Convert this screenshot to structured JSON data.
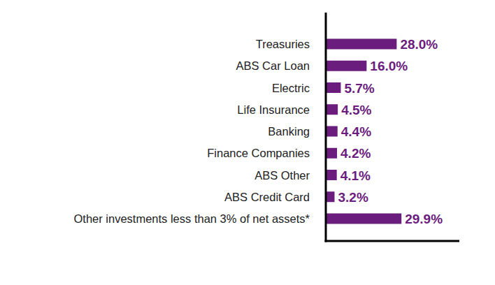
{
  "chart_data": {
    "type": "bar",
    "orientation": "horizontal",
    "categories": [
      "Treasuries",
      "ABS Car Loan",
      "Electric",
      "Life Insurance",
      "Banking",
      "Finance Companies",
      "ABS Other",
      "ABS Credit Card",
      "Other investments less than 3% of net assets*"
    ],
    "values": [
      28.0,
      16.0,
      5.7,
      4.5,
      4.4,
      4.2,
      4.1,
      3.2,
      29.9
    ],
    "value_labels": [
      "28.0%",
      "16.0%",
      "5.7%",
      "4.5%",
      "4.4%",
      "4.2%",
      "4.1%",
      "3.2%",
      "29.9%"
    ],
    "color": "#6b1d7e",
    "xlim": [
      0,
      53
    ],
    "tick_labels": false,
    "data_labels": true,
    "grid": false
  }
}
